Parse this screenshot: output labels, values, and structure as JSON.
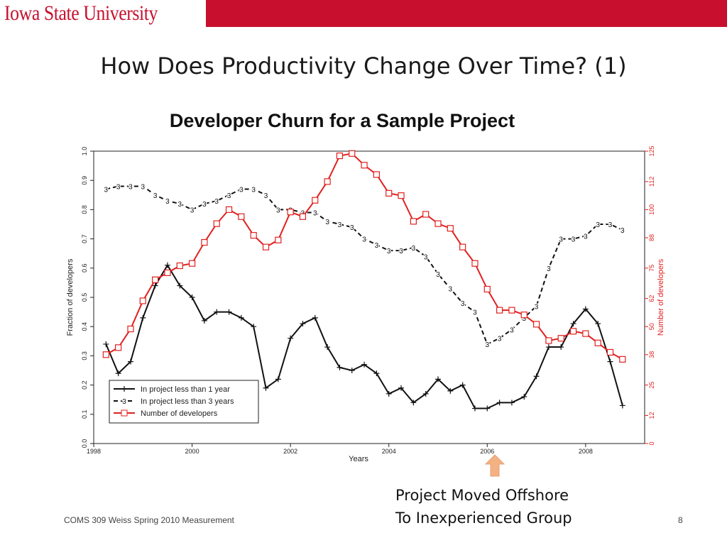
{
  "header": {
    "logo_text": "Iowa State University",
    "brand_color": "#c8102e"
  },
  "slide": {
    "title": "How Does Productivity Change Over Time? (1)",
    "subtitle": "Developer Churn for a Sample Project",
    "note_line1": "Project Moved Offshore",
    "note_line2": "To Inexperienced Group",
    "arrow_icon": "up-arrow-icon",
    "arrow_color": "#f4b183",
    "footer": "COMS 309 Weiss Spring 2010 Measurement",
    "page_number": "8"
  },
  "chart_data": {
    "type": "line",
    "xlabel": "Years",
    "ylabel": "Fraction of developers",
    "y2label": "Number of developers",
    "xlim": [
      1998,
      2009.2
    ],
    "ylim": [
      0.0,
      1.0
    ],
    "y2lim": [
      0,
      125
    ],
    "x_ticks": [
      1998,
      2000,
      2002,
      2004,
      2006,
      2008
    ],
    "y_ticks": [
      0.0,
      0.1,
      0.2,
      0.3,
      0.4,
      0.5,
      0.6,
      0.7,
      0.8,
      0.9,
      1.0
    ],
    "y2_ticks": [
      0,
      12,
      25,
      38,
      50,
      62,
      75,
      88,
      100,
      112,
      125
    ],
    "legend_position": "bottom-left",
    "x": [
      1998.25,
      1998.5,
      1998.75,
      1999.0,
      1999.25,
      1999.5,
      1999.75,
      2000.0,
      2000.25,
      2000.5,
      2000.75,
      2001.0,
      2001.25,
      2001.5,
      2001.75,
      2002.0,
      2002.25,
      2002.5,
      2002.75,
      2003.0,
      2003.25,
      2003.5,
      2003.75,
      2004.0,
      2004.25,
      2004.5,
      2004.75,
      2005.0,
      2005.25,
      2005.5,
      2005.75,
      2006.0,
      2006.25,
      2006.5,
      2006.75,
      2007.0,
      2007.25,
      2007.5,
      2007.75,
      2008.0,
      2008.25,
      2008.5,
      2008.75
    ],
    "series": [
      {
        "name": "In project less than 1 year",
        "color": "#111111",
        "axis": "left",
        "marker": "+",
        "values": [
          0.34,
          0.24,
          0.28,
          0.43,
          0.54,
          0.61,
          0.54,
          0.5,
          0.42,
          0.45,
          0.45,
          0.43,
          0.4,
          0.19,
          0.22,
          0.36,
          0.41,
          0.43,
          0.33,
          0.26,
          0.25,
          0.27,
          0.24,
          0.17,
          0.19,
          0.14,
          0.17,
          0.22,
          0.18,
          0.2,
          0.12,
          0.12,
          0.14,
          0.14,
          0.16,
          0.23,
          0.33,
          0.33,
          0.41,
          0.46,
          0.41,
          0.28,
          0.13
        ]
      },
      {
        "name": "In project less than 3 years",
        "color": "#111111",
        "axis": "left",
        "marker": "3",
        "values": [
          0.87,
          0.88,
          0.88,
          0.88,
          0.85,
          0.83,
          0.82,
          0.8,
          0.82,
          0.83,
          0.85,
          0.87,
          0.87,
          0.85,
          0.8,
          0.8,
          0.79,
          0.79,
          0.76,
          0.75,
          0.74,
          0.7,
          0.68,
          0.66,
          0.66,
          0.67,
          0.64,
          0.58,
          0.53,
          0.48,
          0.45,
          0.34,
          0.36,
          0.39,
          0.43,
          0.47,
          0.6,
          0.7,
          0.7,
          0.71,
          0.75,
          0.75,
          0.73
        ]
      },
      {
        "name": "Number of developers",
        "color": "#e0211f",
        "axis": "right",
        "marker": "square",
        "values": [
          38,
          41,
          49,
          61,
          70,
          73,
          76,
          77,
          86,
          94,
          100,
          97,
          89,
          84,
          87,
          99,
          97,
          104,
          112,
          123,
          124,
          119,
          115,
          107,
          106,
          95,
          98,
          94,
          92,
          84,
          77,
          66,
          57,
          57,
          55,
          51,
          44,
          45,
          48,
          47,
          43,
          39,
          36
        ]
      }
    ]
  }
}
